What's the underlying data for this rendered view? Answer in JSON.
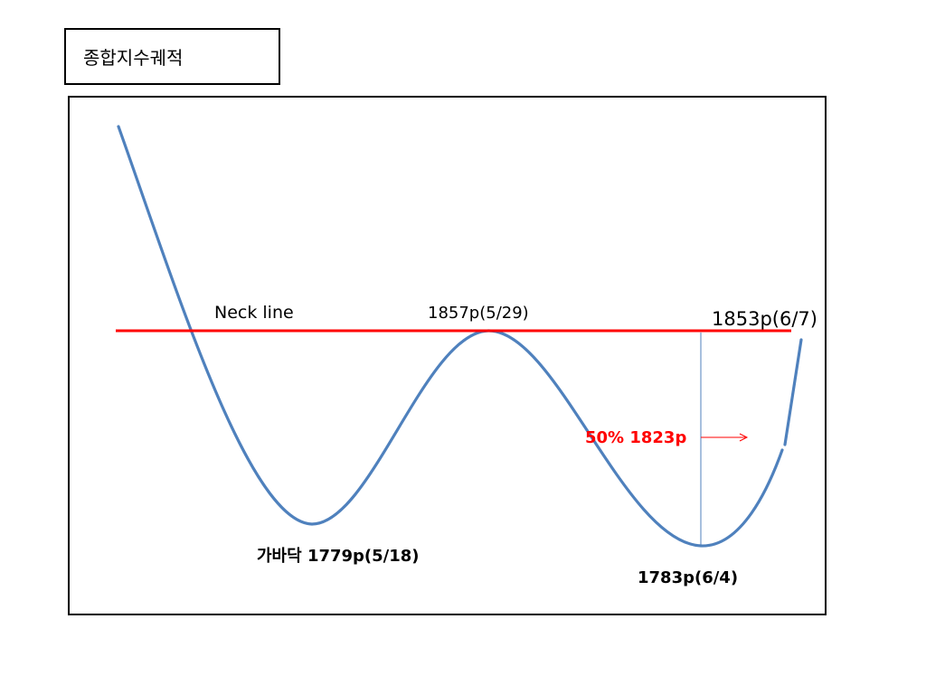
{
  "title": "종합지수궤적",
  "labels": {
    "neck_line": "Neck line",
    "peak": "1857p(5/29)",
    "current": "1853p(6/7)",
    "first_bottom": "가바닥 1779p(5/18)",
    "second_bottom": "1783p(6/4)",
    "retracement": "50% 1823p"
  },
  "colors": {
    "curve": "#4f81bd",
    "neck_line": "#ff0000",
    "retracement_text": "#ff0000",
    "vertical_guide": "#4f81bd"
  }
}
